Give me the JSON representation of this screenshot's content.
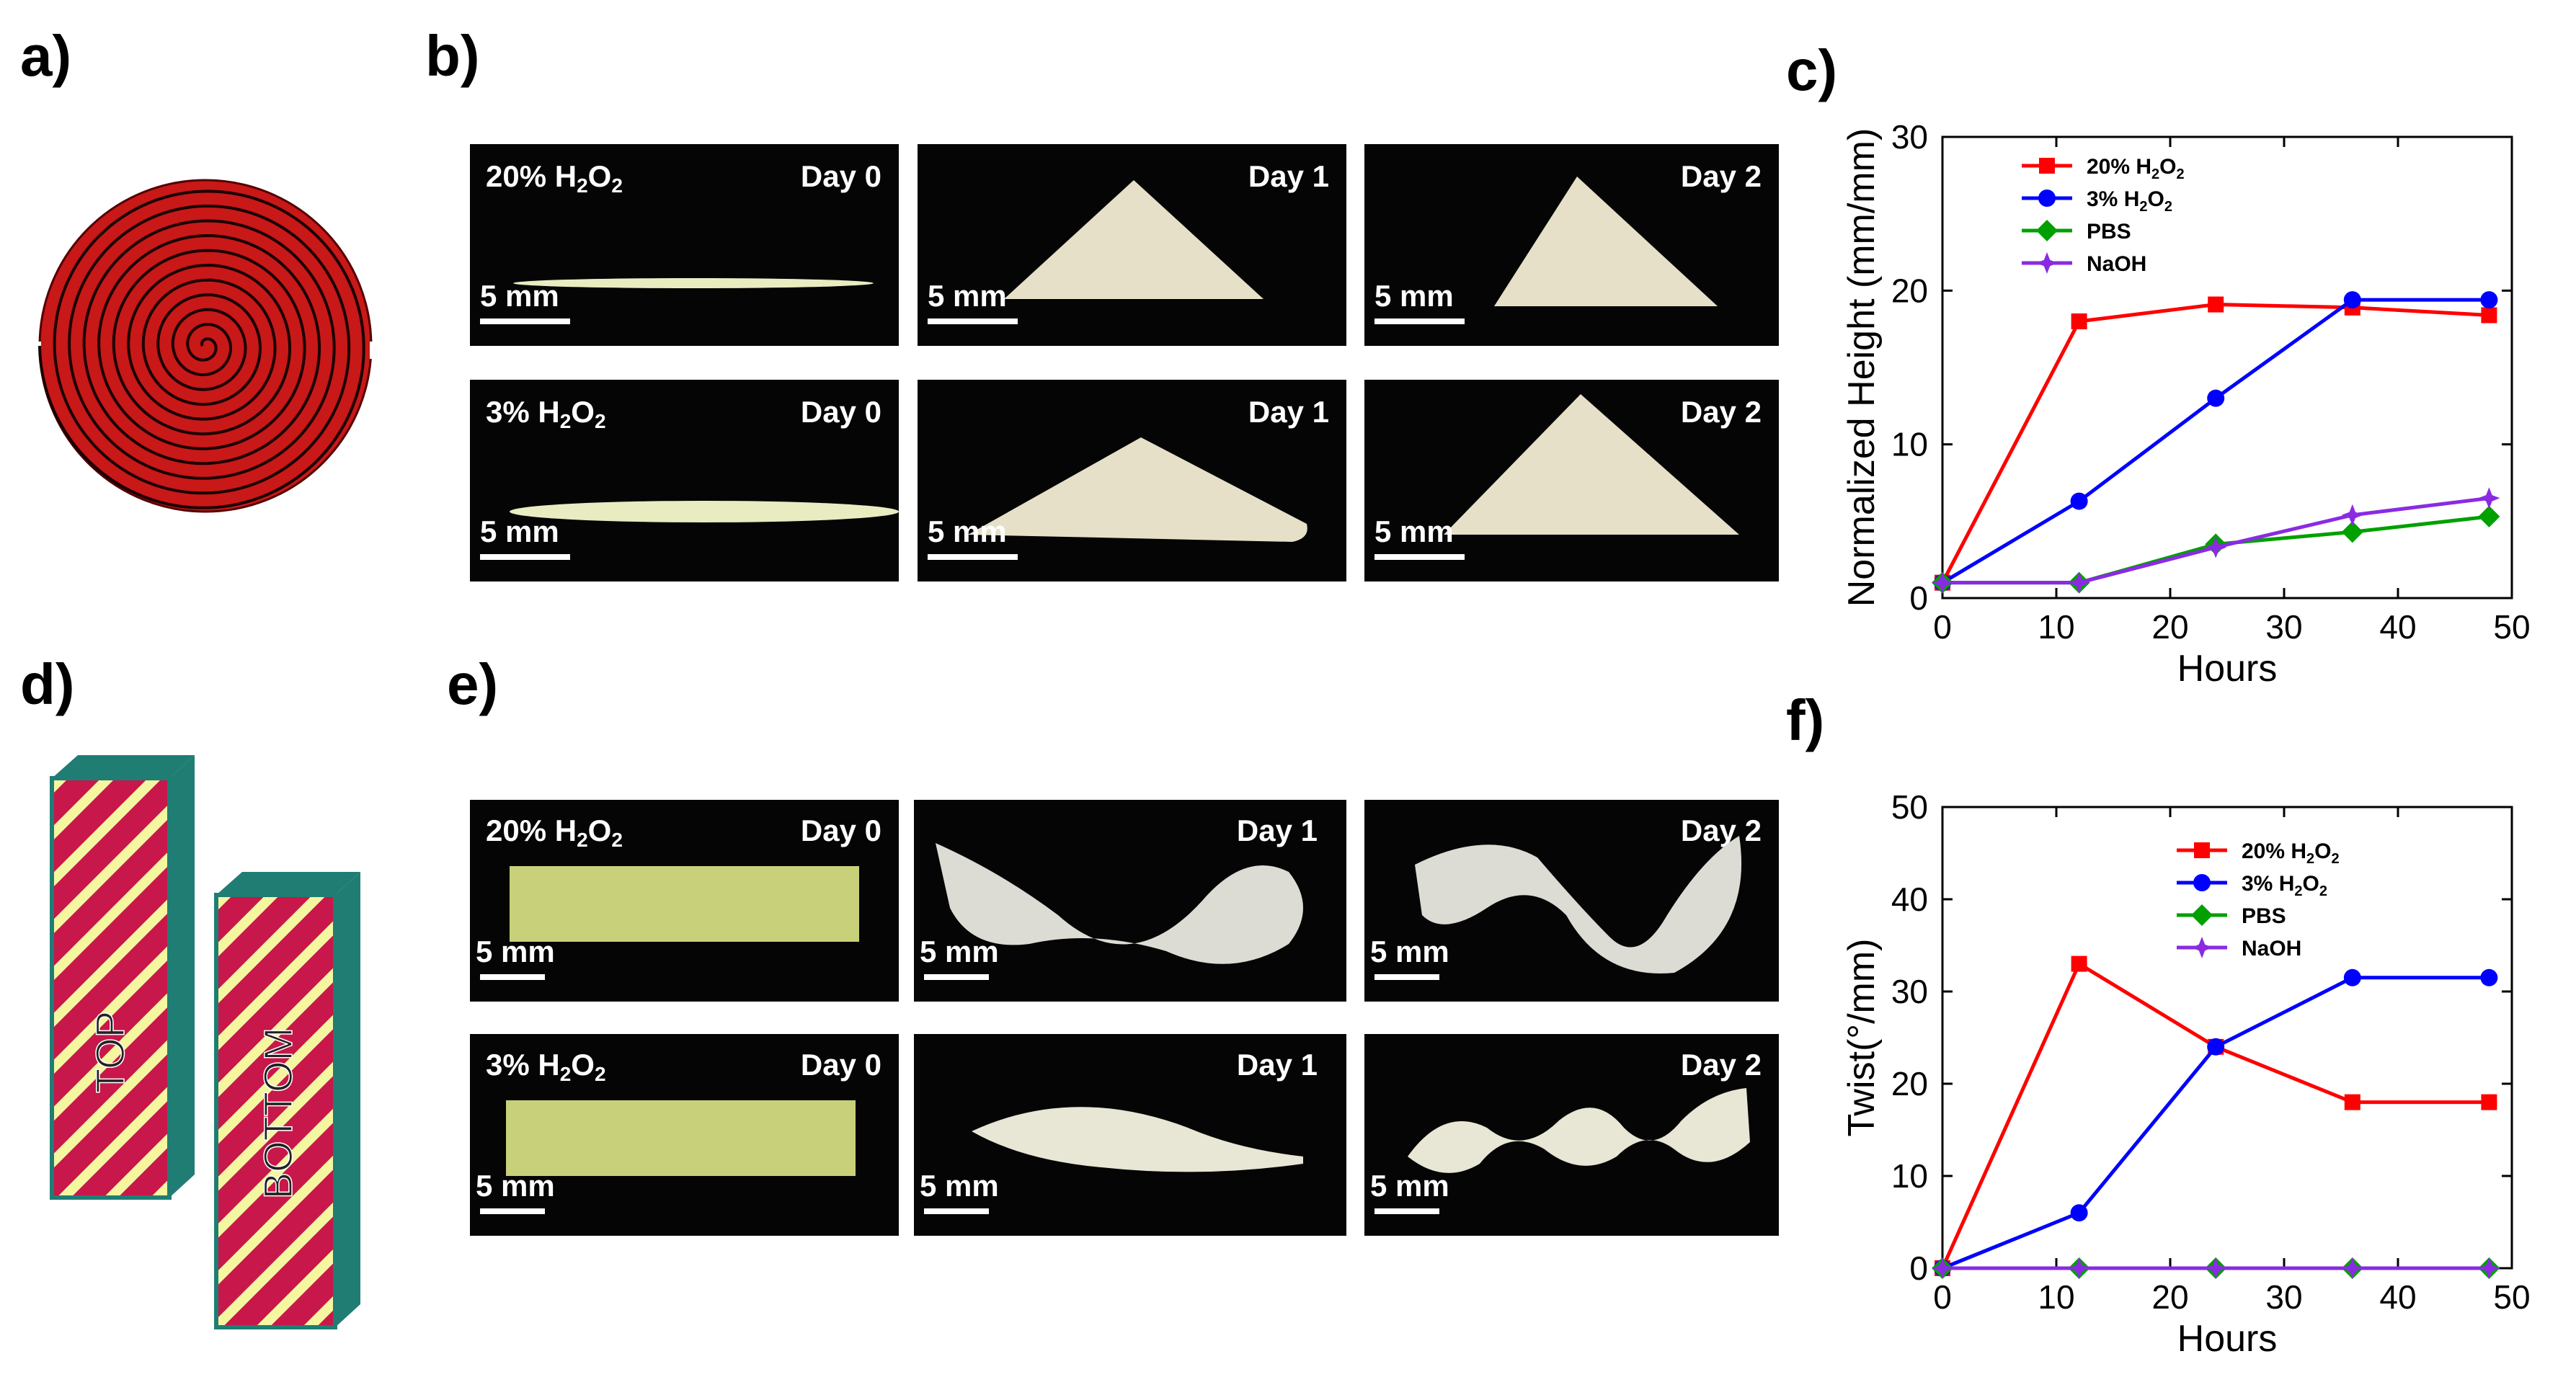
{
  "panel_labels": {
    "a": "a)",
    "b": "b)",
    "c": "c)",
    "d": "d)",
    "e": "e)",
    "f": "f)"
  },
  "panel_d": {
    "top_text": "TOP",
    "bottom_text": "BOTTOM"
  },
  "panel_b": {
    "rows": [
      {
        "condition_prefix": "20% H",
        "condition_sub1": "2",
        "condition_mid": "O",
        "condition_sub2": "2",
        "days": [
          "Day 0",
          "Day 1",
          "Day 2"
        ],
        "scale": "5 mm"
      },
      {
        "condition_prefix": "3% H",
        "condition_sub1": "2",
        "condition_mid": "O",
        "condition_sub2": "2",
        "days": [
          "Day 0",
          "Day 1",
          "Day 2"
        ],
        "scale": "5 mm"
      }
    ]
  },
  "panel_e": {
    "rows": [
      {
        "condition_prefix": "20% H",
        "condition_sub1": "2",
        "condition_mid": "O",
        "condition_sub2": "2",
        "days": [
          "Day 0",
          "Day 1",
          "Day 2"
        ],
        "scale": "5 mm"
      },
      {
        "condition_prefix": "3% H",
        "condition_sub1": "2",
        "condition_mid": "O",
        "condition_sub2": "2",
        "days": [
          "Day 0",
          "Day 1",
          "Day 2"
        ],
        "scale": "5 mm"
      }
    ]
  },
  "chart_data": [
    {
      "type": "line",
      "panel": "c",
      "xlabel": "Hours",
      "ylabel": "Normalized Height (mm/mm)",
      "xlim": [
        0,
        50
      ],
      "ylim": [
        0,
        30
      ],
      "xticks": [
        0,
        10,
        20,
        30,
        40,
        50
      ],
      "yticks": [
        0,
        10,
        20,
        30
      ],
      "legend_position": "top-left",
      "series": [
        {
          "name": "20% H2O2",
          "color": "#ff0000",
          "marker": "square",
          "x": [
            0,
            12,
            24,
            36,
            48
          ],
          "y": [
            1,
            18,
            19.1,
            18.9,
            18.4
          ]
        },
        {
          "name": "3% H2O2",
          "color": "#0000ff",
          "marker": "circle",
          "x": [
            0,
            12,
            24,
            36,
            48
          ],
          "y": [
            1,
            6.3,
            13,
            19.4,
            19.4
          ]
        },
        {
          "name": "PBS",
          "color": "#00a000",
          "marker": "diamond",
          "x": [
            0,
            12,
            24,
            36,
            48
          ],
          "y": [
            1,
            1,
            3.5,
            4.3,
            5.3
          ]
        },
        {
          "name": "NaOH",
          "color": "#8a2be2",
          "marker": "star",
          "x": [
            0,
            12,
            24,
            36,
            48
          ],
          "y": [
            1,
            1,
            3.3,
            5.4,
            6.5
          ]
        }
      ]
    },
    {
      "type": "line",
      "panel": "f",
      "xlabel": "Hours",
      "ylabel": "Twist(°/mm)",
      "xlim": [
        0,
        50
      ],
      "ylim": [
        0,
        50
      ],
      "xticks": [
        0,
        10,
        20,
        30,
        40,
        50
      ],
      "yticks": [
        0,
        10,
        20,
        30,
        40,
        50
      ],
      "legend_position": "top-center",
      "series": [
        {
          "name": "20% H2O2",
          "color": "#ff0000",
          "marker": "square",
          "x": [
            0,
            12,
            24,
            36,
            48
          ],
          "y": [
            0,
            33,
            24,
            18,
            18
          ]
        },
        {
          "name": "3% H2O2",
          "color": "#0000ff",
          "marker": "circle",
          "x": [
            0,
            12,
            24,
            36,
            48
          ],
          "y": [
            0,
            6,
            24,
            31.5,
            31.5
          ]
        },
        {
          "name": "PBS",
          "color": "#00a000",
          "marker": "diamond",
          "x": [
            0,
            12,
            24,
            36,
            48
          ],
          "y": [
            0,
            0,
            0,
            0,
            0
          ]
        },
        {
          "name": "NaOH",
          "color": "#8a2be2",
          "marker": "star",
          "x": [
            0,
            12,
            24,
            36,
            48
          ],
          "y": [
            0,
            0,
            0,
            0,
            0
          ]
        }
      ]
    }
  ]
}
